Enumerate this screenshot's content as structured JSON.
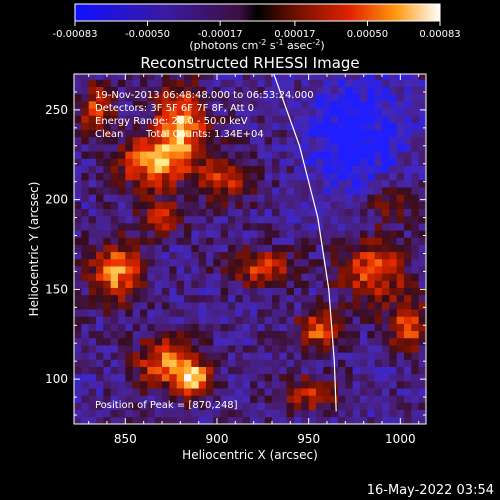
{
  "chart_data": {
    "type": "heatmap",
    "title": "Reconstructed RHESSI Image",
    "xlabel": "Heliocentric X (arcsec)",
    "ylabel": "Heliocentric Y (arcsec)",
    "xlim": [
      822,
      1014
    ],
    "ylim": [
      75,
      270
    ],
    "xticks": [
      850,
      900,
      950,
      1000
    ],
    "yticks": [
      100,
      150,
      200,
      250
    ],
    "colorbar": {
      "range": [
        -0.00083,
        0.00083
      ],
      "tick_values": [
        -0.00083,
        -0.0005,
        -0.00017,
        0.00017,
        0.0005,
        0.00083
      ],
      "tick_labels": [
        "-0.00083",
        "-0.00050",
        "-0.00017",
        "0.00017",
        "0.00050",
        "0.00083"
      ],
      "unit_label": "(photons cm",
      "unit_sup1": "-2",
      "unit_mid": " s",
      "unit_sup2": "-1",
      "unit_end": " asec",
      "unit_sup3": "-2",
      "unit_close": ")"
    },
    "annotations": {
      "line1": "19-Nov-2013 06:48:48.000 to 06:53:24.000",
      "line2": "Detectors: 3F 5F 6F 7F 8F, Att 0",
      "line3": "Energy Range: 20.0 - 50.0 keV",
      "line4a": "Clean",
      "line4b": "Total Counts: 1.34E+04",
      "peak": "Position of Peak = [870,248]"
    },
    "limb": [
      [
        931,
        270
      ],
      [
        945,
        230
      ],
      [
        955,
        190
      ],
      [
        961,
        150
      ],
      [
        964,
        110
      ],
      [
        965,
        82
      ]
    ],
    "peak_position": [
      870,
      248
    ]
  },
  "footer": {
    "timestamp": "16-May-2022 03:54"
  }
}
